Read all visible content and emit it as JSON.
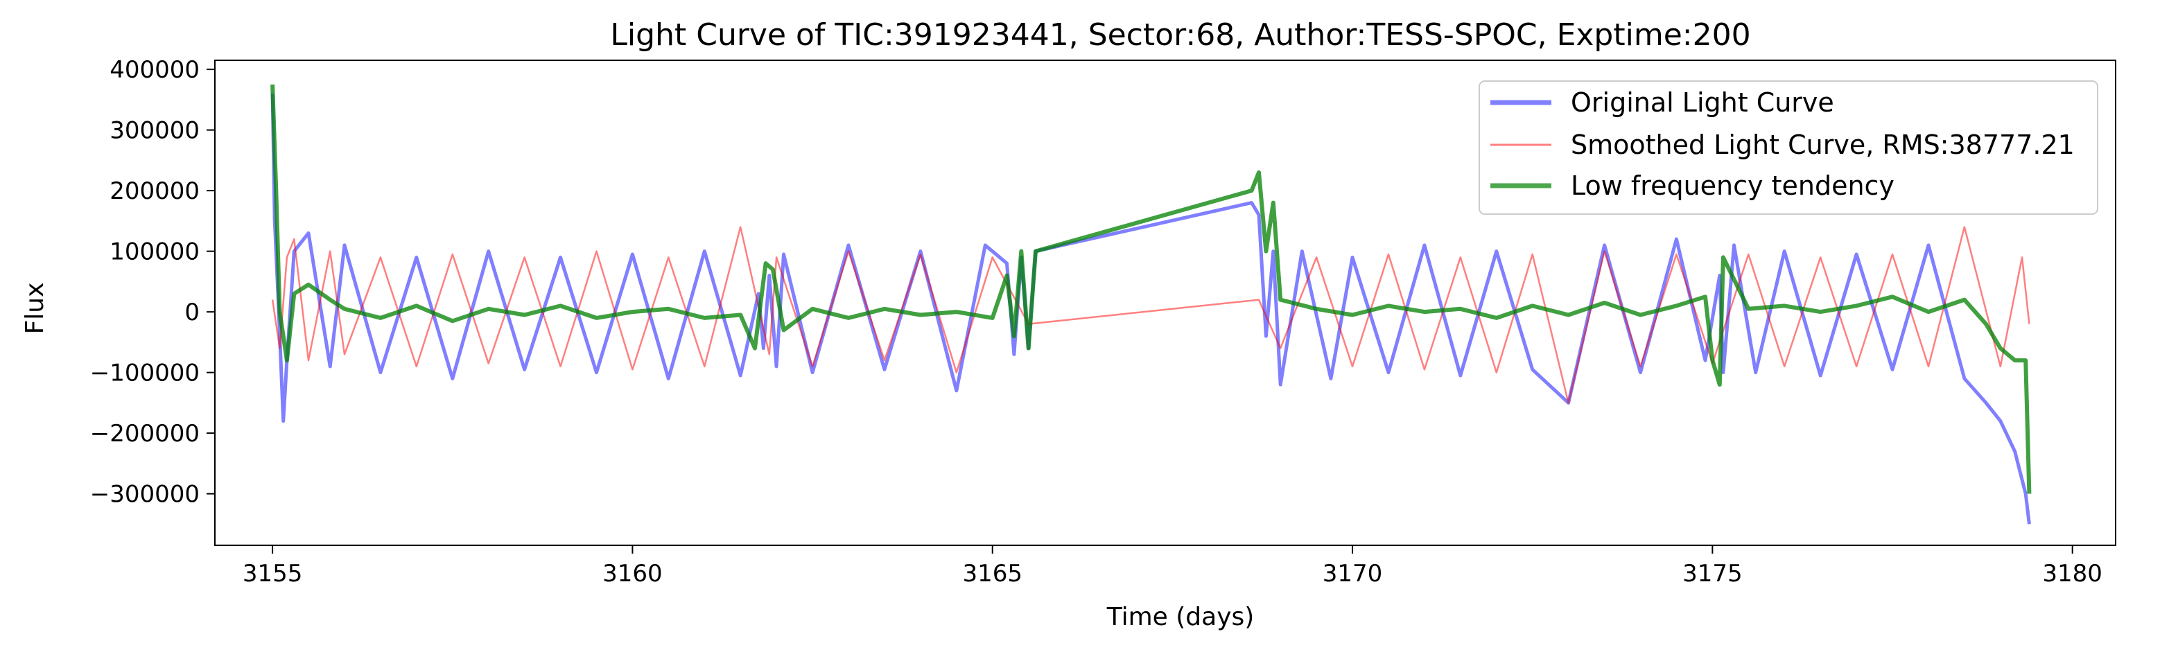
{
  "chart_data": {
    "type": "line",
    "title": "Light Curve of TIC:391923441, Sector:68, Author:TESS-SPOC, Exptime:200",
    "xlabel": "Time (days)",
    "ylabel": "Flux",
    "xlim": [
      3154.2,
      3180.6
    ],
    "ylim": [
      -385000,
      415000
    ],
    "xticks": [
      3155,
      3160,
      3165,
      3170,
      3175,
      3180
    ],
    "xtick_labels": [
      "3155",
      "3160",
      "3165",
      "3170",
      "3175",
      "3180"
    ],
    "yticks": [
      -300000,
      -200000,
      -100000,
      0,
      100000,
      200000,
      300000,
      400000
    ],
    "ytick_labels": [
      "−300000",
      "−200000",
      "−100000",
      "0",
      "100000",
      "200000",
      "300000",
      "400000"
    ],
    "grid": false,
    "legend_position": "upper right",
    "colors": {
      "original": "#0000ff",
      "smoothed": "#ff0000",
      "low_frequency": "#008000"
    },
    "series": [
      {
        "name": "Original Light Curve",
        "color": "#0000ff",
        "x": [
          3155.0,
          3155.03,
          3155.08,
          3155.15,
          3155.2,
          3155.3,
          3155.5,
          3155.8,
          3156.0,
          3156.5,
          3157.0,
          3157.5,
          3158.0,
          3158.5,
          3159.0,
          3159.5,
          3160.0,
          3160.5,
          3161.0,
          3161.5,
          3161.75,
          3161.82,
          3161.9,
          3162.0,
          3162.1,
          3162.5,
          3163.0,
          3163.5,
          3164.0,
          3164.5,
          3164.9,
          3165.2,
          3165.3,
          3165.4,
          3165.5,
          3165.6,
          3168.6,
          3168.7,
          3168.8,
          3168.9,
          3169.0,
          3169.3,
          3169.7,
          3170.0,
          3170.5,
          3171.0,
          3171.5,
          3172.0,
          3172.5,
          3173.0,
          3173.5,
          3174.0,
          3174.5,
          3174.9,
          3175.1,
          3175.15,
          3175.3,
          3175.6,
          3176.0,
          3176.5,
          3177.0,
          3177.5,
          3178.0,
          3178.5,
          3178.8,
          3179.0,
          3179.2,
          3179.35,
          3179.4
        ],
        "values": [
          360000,
          150000,
          20000,
          -180000,
          -80000,
          100000,
          130000,
          -90000,
          110000,
          -100000,
          90000,
          -110000,
          100000,
          -95000,
          90000,
          -100000,
          95000,
          -110000,
          100000,
          -105000,
          30000,
          -60000,
          60000,
          -90000,
          95000,
          -100000,
          110000,
          -95000,
          100000,
          -130000,
          110000,
          80000,
          -70000,
          90000,
          -60000,
          100000,
          180000,
          160000,
          -40000,
          100000,
          -120000,
          100000,
          -110000,
          90000,
          -100000,
          110000,
          -105000,
          100000,
          -95000,
          -150000,
          110000,
          -100000,
          120000,
          -80000,
          60000,
          -100000,
          110000,
          -100000,
          100000,
          -105000,
          95000,
          -95000,
          110000,
          -110000,
          -150000,
          -180000,
          -230000,
          -300000,
          -350000
        ]
      },
      {
        "name": "Smoothed Light Curve, RMS:38777.21",
        "color": "#ff0000",
        "x": [
          3155.0,
          3155.1,
          3155.2,
          3155.3,
          3155.5,
          3155.8,
          3156.0,
          3156.5,
          3157.0,
          3157.5,
          3158.0,
          3158.5,
          3159.0,
          3159.5,
          3160.0,
          3160.5,
          3161.0,
          3161.5,
          3161.9,
          3162.0,
          3162.5,
          3163.0,
          3163.5,
          3164.0,
          3164.5,
          3165.0,
          3165.5,
          3168.7,
          3169.0,
          3169.5,
          3170.0,
          3170.5,
          3171.0,
          3171.5,
          3172.0,
          3172.5,
          3173.0,
          3173.5,
          3174.0,
          3174.5,
          3175.0,
          3175.5,
          3176.0,
          3176.5,
          3177.0,
          3177.5,
          3178.0,
          3178.5,
          3179.0,
          3179.3,
          3179.4
        ],
        "values": [
          20000,
          -60000,
          90000,
          120000,
          -80000,
          100000,
          -70000,
          90000,
          -90000,
          95000,
          -85000,
          90000,
          -90000,
          100000,
          -95000,
          90000,
          -90000,
          140000,
          -70000,
          90000,
          -90000,
          100000,
          -80000,
          95000,
          -100000,
          90000,
          -20000,
          20000,
          -60000,
          90000,
          -90000,
          95000,
          -95000,
          90000,
          -100000,
          95000,
          -150000,
          100000,
          -90000,
          95000,
          -85000,
          95000,
          -90000,
          90000,
          -90000,
          95000,
          -90000,
          140000,
          -90000,
          90000,
          -20000
        ]
      },
      {
        "name": "Low frequency tendency",
        "color": "#008000",
        "x": [
          3155.0,
          3155.05,
          3155.1,
          3155.2,
          3155.3,
          3155.5,
          3155.8,
          3156.0,
          3156.5,
          3157.0,
          3157.5,
          3158.0,
          3158.5,
          3159.0,
          3159.5,
          3160.0,
          3160.5,
          3161.0,
          3161.5,
          3161.7,
          3161.85,
          3161.95,
          3162.1,
          3162.5,
          3163.0,
          3163.5,
          3164.0,
          3164.5,
          3165.0,
          3165.2,
          3165.3,
          3165.4,
          3165.5,
          3165.6,
          3168.6,
          3168.7,
          3168.8,
          3168.9,
          3169.0,
          3169.5,
          3170.0,
          3170.5,
          3171.0,
          3171.5,
          3172.0,
          3172.5,
          3173.0,
          3173.5,
          3174.0,
          3174.5,
          3174.9,
          3175.0,
          3175.1,
          3175.15,
          3175.5,
          3176.0,
          3176.5,
          3177.0,
          3177.5,
          3178.0,
          3178.5,
          3178.8,
          3179.0,
          3179.2,
          3179.35,
          3179.4
        ],
        "values": [
          375000,
          200000,
          0,
          -80000,
          30000,
          45000,
          20000,
          5000,
          -10000,
          10000,
          -15000,
          5000,
          -5000,
          10000,
          -10000,
          0,
          5000,
          -10000,
          -5000,
          -60000,
          80000,
          70000,
          -30000,
          5000,
          -10000,
          5000,
          -5000,
          0,
          -10000,
          60000,
          -40000,
          100000,
          -60000,
          100000,
          200000,
          230000,
          100000,
          180000,
          20000,
          5000,
          -5000,
          10000,
          0,
          5000,
          -10000,
          10000,
          -5000,
          15000,
          -5000,
          10000,
          25000,
          -80000,
          -120000,
          90000,
          5000,
          10000,
          0,
          10000,
          25000,
          0,
          20000,
          -20000,
          -60000,
          -80000,
          -80000,
          -300000
        ]
      }
    ]
  },
  "legend": {
    "items": [
      {
        "label": "Original Light Curve",
        "color": "#0000ff",
        "alpha": 0.5,
        "width": 7
      },
      {
        "label": "Smoothed Light Curve, RMS:38777.21",
        "color": "#ff0000",
        "alpha": 0.5,
        "width": 3
      },
      {
        "label": "Low frequency tendency",
        "color": "#008000",
        "alpha": 0.7,
        "width": 7
      }
    ]
  }
}
